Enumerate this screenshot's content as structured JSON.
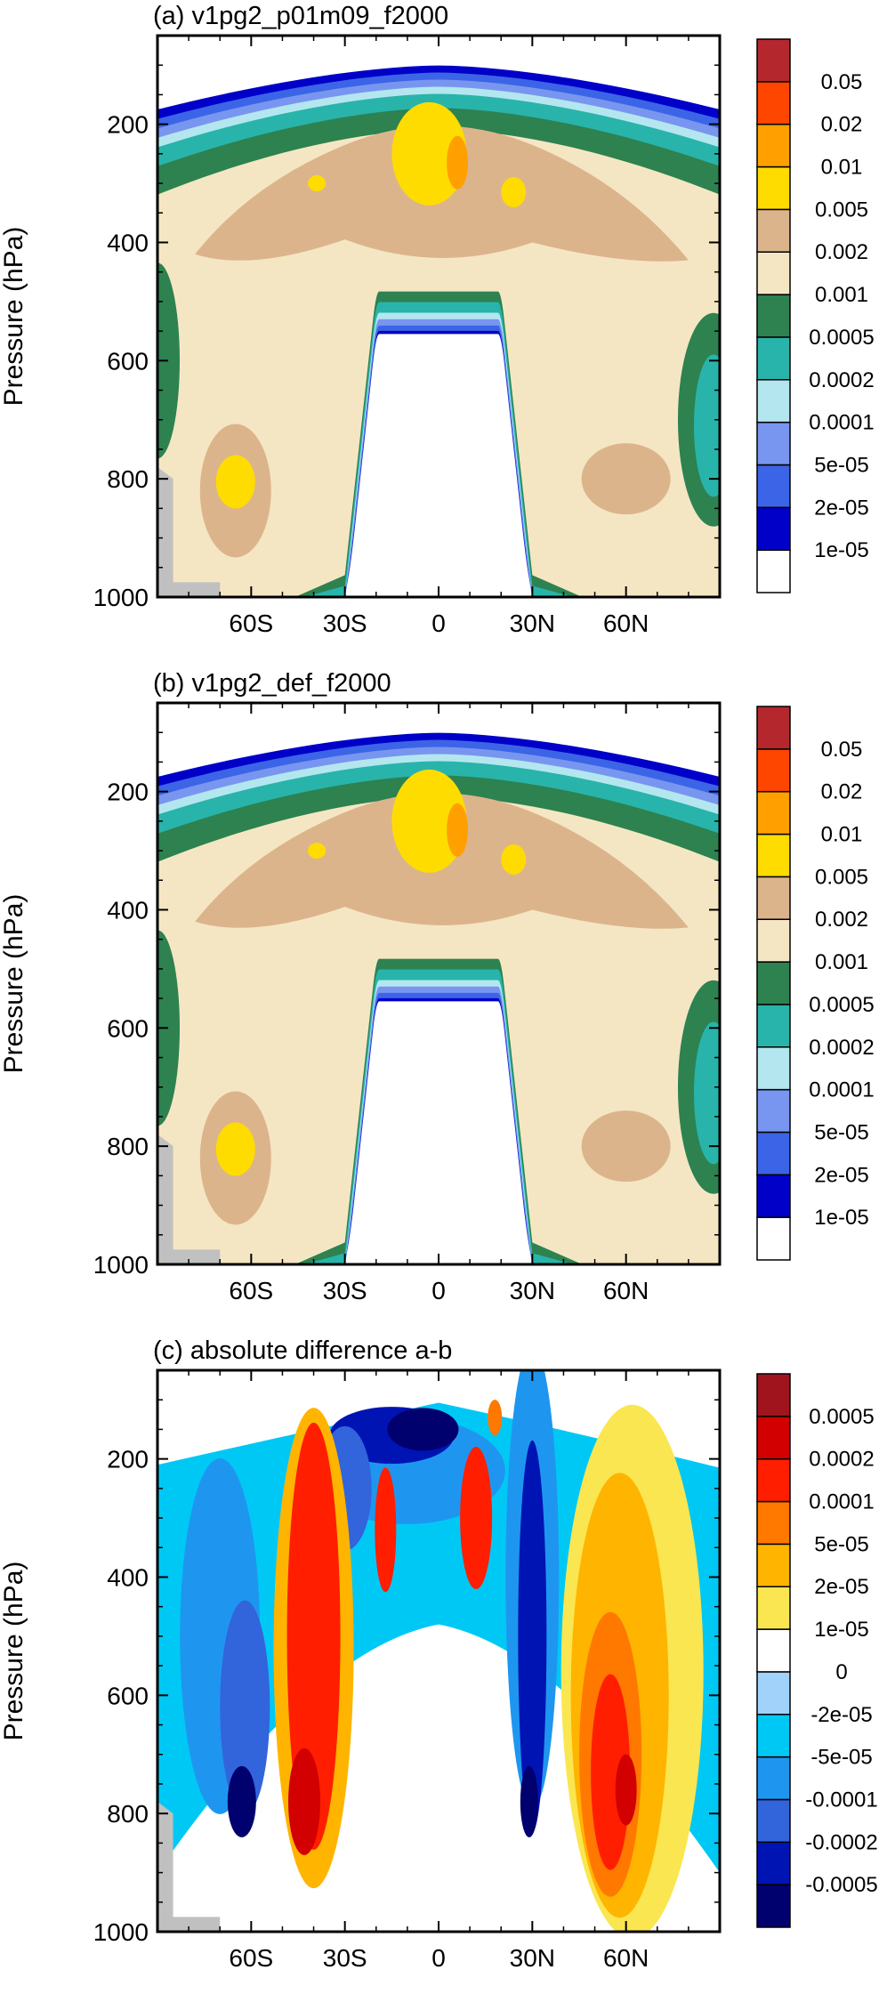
{
  "chart_data": [
    {
      "type": "heatmap",
      "title": "(a) v1pg2_p01m09_f2000",
      "ylabel": "Pressure (hPa)",
      "xticks": [
        "60S",
        "30S",
        "0",
        "30N",
        "60N"
      ],
      "xtick_values": [
        -60,
        -30,
        0,
        30,
        60
      ],
      "xlim": [
        -90,
        90
      ],
      "yticks": [
        "200",
        "400",
        "600",
        "800",
        "1000"
      ],
      "ytick_values": [
        200,
        400,
        600,
        800,
        1000
      ],
      "ylim": [
        1000,
        50
      ],
      "colorbar": {
        "labels": [
          "1e-05",
          "2e-05",
          "5e-05",
          "0.0001",
          "0.0002",
          "0.0005",
          "0.001",
          "0.002",
          "0.005",
          "0.01",
          "0.02",
          "0.05"
        ],
        "colors": [
          "#ffffff",
          "#0000c8",
          "#3c64e6",
          "#7896f0",
          "#b4e6f0",
          "#28b4aa",
          "#2d8250",
          "#f5e6c3",
          "#dcb48c",
          "#ffdc00",
          "#ffa000",
          "#ff4600",
          "#b4282d"
        ]
      },
      "max_levels": {
        "shell_top": [
          170,
          150,
          118,
          100,
          90,
          92,
          105,
          125,
          150,
          170
        ],
        "inner_upper_peak": 250
      }
    },
    {
      "type": "heatmap",
      "title": "(b) v1pg2_def_f2000",
      "ylabel": "Pressure (hPa)",
      "xticks": [
        "60S",
        "30S",
        "0",
        "30N",
        "60N"
      ],
      "xtick_values": [
        -60,
        -30,
        0,
        30,
        60
      ],
      "xlim": [
        -90,
        90
      ],
      "yticks": [
        "200",
        "400",
        "600",
        "800",
        "1000"
      ],
      "ytick_values": [
        200,
        400,
        600,
        800,
        1000
      ],
      "ylim": [
        1000,
        50
      ],
      "colorbar": {
        "labels": [
          "1e-05",
          "2e-05",
          "5e-05",
          "0.0001",
          "0.0002",
          "0.0005",
          "0.001",
          "0.002",
          "0.005",
          "0.01",
          "0.02",
          "0.05"
        ],
        "colors": [
          "#ffffff",
          "#0000c8",
          "#3c64e6",
          "#7896f0",
          "#b4e6f0",
          "#28b4aa",
          "#2d8250",
          "#f5e6c3",
          "#dcb48c",
          "#ffdc00",
          "#ffa000",
          "#ff4600",
          "#b4282d"
        ]
      }
    },
    {
      "type": "heatmap",
      "title": "(c) absolute difference a-b",
      "ylabel": "Pressure (hPa)",
      "xticks": [
        "60S",
        "30S",
        "0",
        "30N",
        "60N"
      ],
      "xtick_values": [
        -60,
        -30,
        0,
        30,
        60
      ],
      "xlim": [
        -90,
        90
      ],
      "yticks": [
        "200",
        "400",
        "600",
        "800",
        "1000"
      ],
      "ytick_values": [
        200,
        400,
        600,
        800,
        1000
      ],
      "ylim": [
        1000,
        50
      ],
      "colorbar": {
        "labels": [
          "-0.0005",
          "-0.0002",
          "-0.0001",
          "-5e-05",
          "-2e-05",
          "0",
          "1e-05",
          "2e-05",
          "5e-05",
          "0.0001",
          "0.0002",
          "0.0005"
        ],
        "colors": [
          "#00006e",
          "#0014b4",
          "#3264dc",
          "#1e96f0",
          "#00c8f5",
          "#a0d2fa",
          "#ffffff",
          "#fae650",
          "#ffb400",
          "#ff7800",
          "#ff1e00",
          "#d20000",
          "#a0141e"
        ]
      }
    }
  ]
}
